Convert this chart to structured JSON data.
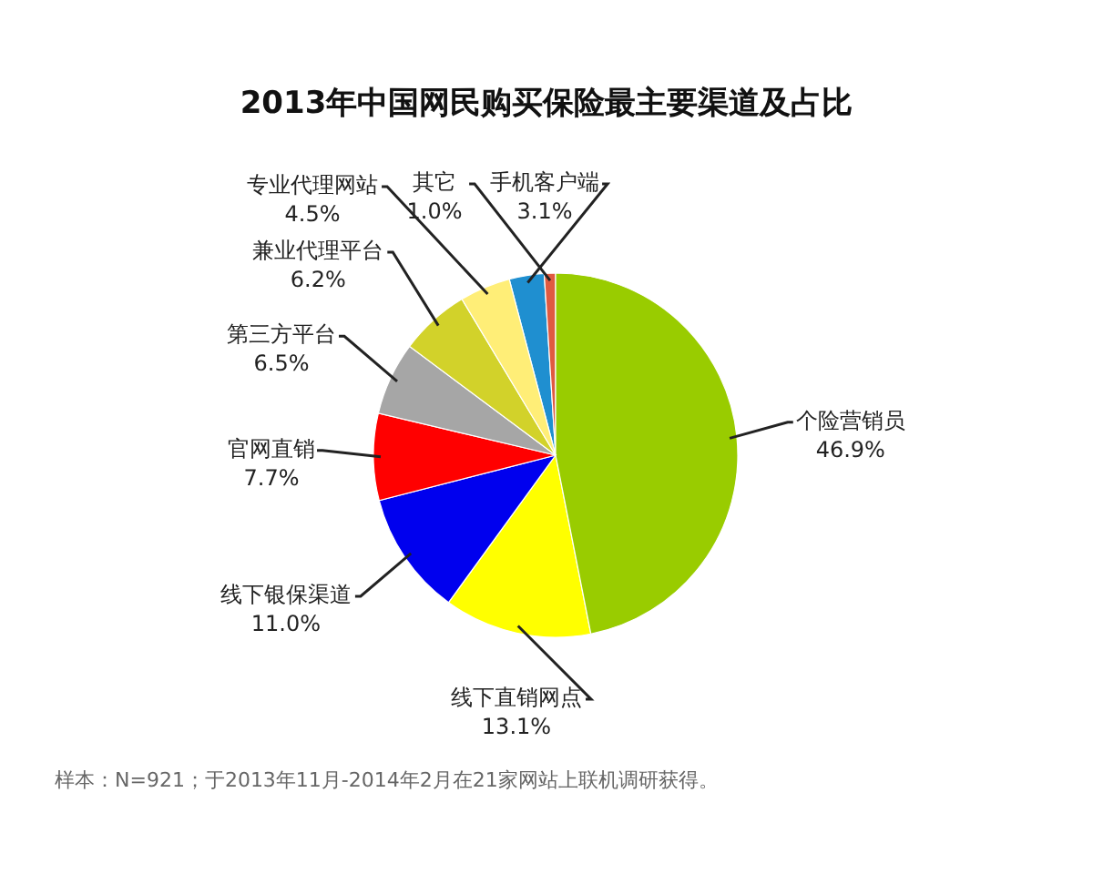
{
  "chart_data": {
    "type": "pie",
    "title": "2013年中国网民购买保险最主要渠道及占比",
    "categories": [
      "个险营销员",
      "线下直销网点",
      "线下银保渠道",
      "官网直销",
      "第三方平台",
      "兼业代理平台",
      "专业代理网站",
      "手机客户端",
      "其它"
    ],
    "values": [
      46.9,
      13.1,
      11.0,
      7.7,
      6.5,
      6.2,
      4.5,
      3.1,
      1.0
    ],
    "value_labels": [
      "46.9%",
      "13.1%",
      "11.0%",
      "7.7%",
      "6.5%",
      "6.2%",
      "4.5%",
      "3.1%",
      "1.0%"
    ],
    "colors": [
      "#99cc00",
      "#ffff00",
      "#0000ee",
      "#ff0000",
      "#a6a6a6",
      "#d2d22a",
      "#ffee77",
      "#1f8fd0",
      "#e05a40"
    ],
    "annotations": [
      "样本：N=921；于2013年11月-2014年2月在21家网站上联机调研获得。"
    ]
  }
}
